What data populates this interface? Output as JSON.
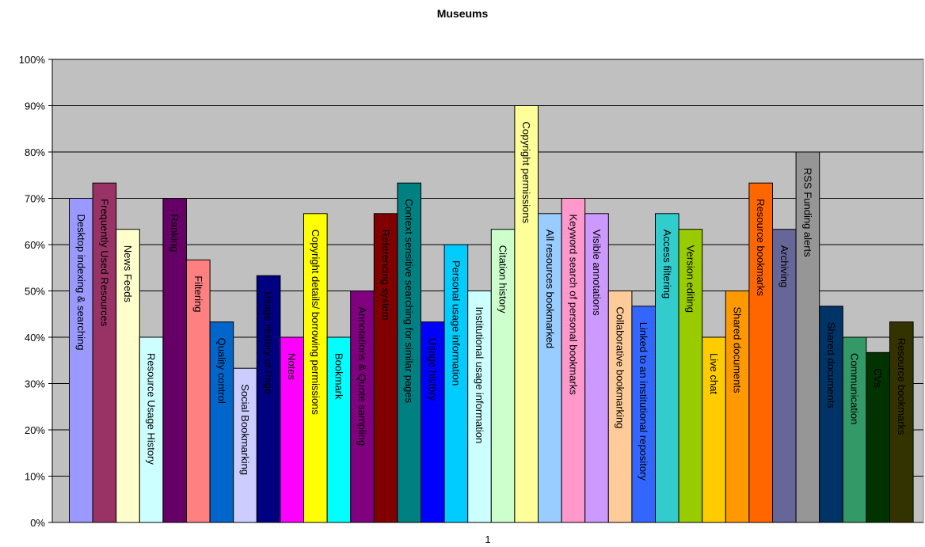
{
  "chart_data": {
    "type": "bar",
    "title": "Museums",
    "categories": [
      "1"
    ],
    "ylim": [
      0,
      100
    ],
    "yticks": [
      "0%",
      "10%",
      "20%",
      "30%",
      "40%",
      "50%",
      "60%",
      "70%",
      "80%",
      "90%",
      "100%"
    ],
    "grid": true,
    "plot_background": "#c0c0c0",
    "series": [
      {
        "name": "Desktop indexing & searching",
        "values": [
          70
        ],
        "color": "#9999ff"
      },
      {
        "name": "Frequently Used Resources",
        "values": [
          73.3
        ],
        "color": "#993366"
      },
      {
        "name": "News Feeds",
        "values": [
          63.3
        ],
        "color": "#ffffcc"
      },
      {
        "name": "Resource Usage History",
        "values": [
          40
        ],
        "color": "#ccffff"
      },
      {
        "name": "Ranking",
        "values": [
          70
        ],
        "color": "#660066"
      },
      {
        "name": "Filtering",
        "values": [
          56.7
        ],
        "color": "#ff8080"
      },
      {
        "name": "Quality control",
        "values": [
          43.3
        ],
        "color": "#0066cc"
      },
      {
        "name": "Social Bookmarking",
        "values": [
          33.3
        ],
        "color": "#ccccff"
      },
      {
        "name": "Usage History of Page",
        "values": [
          53.3
        ],
        "color": "#000080"
      },
      {
        "name": "Notes",
        "values": [
          40
        ],
        "color": "#ff00ff"
      },
      {
        "name": "Copyright details/ borrowing permissions",
        "values": [
          66.7
        ],
        "color": "#ffff00"
      },
      {
        "name": "Bookmark",
        "values": [
          40
        ],
        "color": "#00ffff"
      },
      {
        "name": "Annotations & Quote sampling",
        "values": [
          50
        ],
        "color": "#800080"
      },
      {
        "name": "Referencing system",
        "values": [
          66.7
        ],
        "color": "#800000"
      },
      {
        "name": "Context sensitive searching for similar pages",
        "values": [
          73.3
        ],
        "color": "#008080"
      },
      {
        "name": "Usage history",
        "values": [
          43.3
        ],
        "color": "#0000ff"
      },
      {
        "name": "Personal usage information",
        "values": [
          60
        ],
        "color": "#00ccff"
      },
      {
        "name": "Institutional usage information",
        "values": [
          50
        ],
        "color": "#ccffff"
      },
      {
        "name": "Citation history",
        "values": [
          63.3
        ],
        "color": "#ccffcc"
      },
      {
        "name": "Copyright permissions",
        "values": [
          90
        ],
        "color": "#ffff99"
      },
      {
        "name": "All resources bookmarked",
        "values": [
          66.7
        ],
        "color": "#99ccff"
      },
      {
        "name": "Keyword search of personal bookmarks",
        "values": [
          70
        ],
        "color": "#ff99cc"
      },
      {
        "name": "Visible annotations",
        "values": [
          66.7
        ],
        "color": "#cc99ff"
      },
      {
        "name": "Collaborative bookmarking",
        "values": [
          50
        ],
        "color": "#ffcc99"
      },
      {
        "name": "Linked to an institutional repository",
        "values": [
          46.7
        ],
        "color": "#3366ff"
      },
      {
        "name": "Access filtering",
        "values": [
          66.7
        ],
        "color": "#33cccc"
      },
      {
        "name": "Version editing",
        "values": [
          63.3
        ],
        "color": "#99cc00"
      },
      {
        "name": "Live chat",
        "values": [
          40
        ],
        "color": "#ffcc00"
      },
      {
        "name": "Shared documents",
        "values": [
          50
        ],
        "color": "#ff9900"
      },
      {
        "name": "Resource bookmarks",
        "values": [
          73.3
        ],
        "color": "#ff6600"
      },
      {
        "name": "Archiving",
        "values": [
          63.3
        ],
        "color": "#666699"
      },
      {
        "name": "RSS Funding alerts",
        "values": [
          80
        ],
        "color": "#969696"
      },
      {
        "name": "Shared documents",
        "values": [
          46.7
        ],
        "color": "#003366"
      },
      {
        "name": "Communication",
        "values": [
          40
        ],
        "color": "#339966"
      },
      {
        "name": "CVs",
        "values": [
          36.7
        ],
        "color": "#003300"
      },
      {
        "name": "Resource bookmarks",
        "values": [
          43.3
        ],
        "color": "#333300"
      }
    ]
  }
}
